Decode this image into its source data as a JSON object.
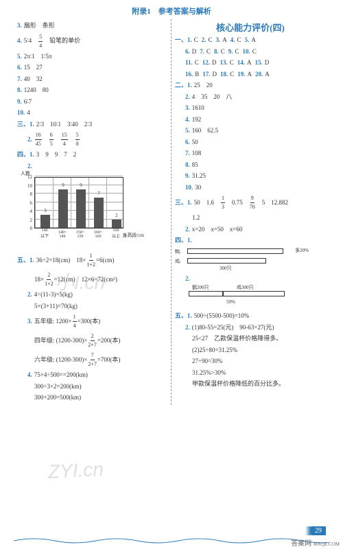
{
  "header": "附录1　参考答案与解析",
  "title_right": "核心能力评价(四)",
  "left": {
    "l3": "扇形　条形",
    "l4a": "5∶4",
    "l4b_num": "5",
    "l4b_den": "4",
    "l4c": "铅笔的单价",
    "l5": "2π∶1　1∶5π",
    "l6": "15　27",
    "l7": "40　32",
    "l8": "1240　80",
    "l9": "6∶7",
    "l10": "4",
    "s3_1": "2∶3　10∶1　3∶40　2∶3",
    "s3_2_f1n": "16",
    "s3_2_f1d": "45",
    "s3_2_f2n": "6",
    "s3_2_f2d": "5",
    "s3_2_f3n": "15",
    "s3_2_f3d": "4",
    "s3_2_f4n": "5",
    "s3_2_f4d": "8",
    "s4_1": "3　9　9　7　2",
    "chart": {
      "ylabel": "人数",
      "xlabel": "身高段/cm",
      "ymax": 12,
      "ystep": 2,
      "bars": [
        {
          "v": 3,
          "l": "3"
        },
        {
          "v": 9,
          "l": "9"
        },
        {
          "v": 9,
          "l": "9"
        },
        {
          "v": 7,
          "l": "7"
        },
        {
          "v": 2,
          "l": "2"
        }
      ],
      "xlabels": [
        "140\n以下",
        "140~\n149",
        "150~\n159",
        "160~\n169",
        "169\n以上"
      ],
      "bar_color": "#555",
      "grid_color": "#aaa"
    },
    "s5_1a": "36÷2=18(cm)　18×",
    "s5_1a_fn": "1",
    "s5_1a_fd": "1+2",
    "s5_1a2": "=6(cm)",
    "s5_1b": "18×",
    "s5_1b_fn": "2",
    "s5_1b_fd": "1+2",
    "s5_1b2": "=12(cm)　12×6=72(cm²)",
    "s5_2a": "4÷(11-3)=5(kg)",
    "s5_2b": "5×(3+11)=70(kg)",
    "s5_3a": "五年级: 1200×",
    "s5_3a_fn": "1",
    "s5_3a_fd": "4",
    "s5_3a2": "=300(本)",
    "s5_3b": "四年级: (1200-300)×",
    "s5_3b_fn": "2",
    "s5_3b_fd": "2+7",
    "s5_3b2": "=200(本)",
    "s5_3c": "六年级: (1200-300)×",
    "s5_3c_fn": "7",
    "s5_3c_fd": "2+7",
    "s5_3c2": "=700(本)",
    "s5_4a": "75×4÷500=",
    "s5_4a2": "=200(km)",
    "s5_4b": "300÷3×2=200(km)",
    "s5_4c": "300+200=500(km)"
  },
  "right": {
    "s1": [
      "1.C",
      "2.C",
      "3.A",
      "4.C",
      "5.A",
      "6.D",
      "7.C",
      "8.C",
      "9.C",
      "10.C",
      "11.C",
      "12.D",
      "13.C",
      "14.A",
      "15.D",
      "16.B",
      "17.D",
      "18.C",
      "19.A",
      "20.A"
    ],
    "s2_1": "25　20",
    "s2_2": "4　35　20　八",
    "s2_3": "1610",
    "s2_4": "192",
    "s2_5": "160　62.5",
    "s2_6": "50",
    "s2_7": "108",
    "s2_8": "85",
    "s2_9": "31.25",
    "s2_10": "30",
    "s3_1a": "50　1.6　",
    "s3_1_fn": "1",
    "s3_1_fd": "3",
    "s3_1b": "　0.75　",
    "s3_1_f2n": "9",
    "s3_1_f2d": "70",
    "s3_1c": "　5　12.882",
    "s3_1d": "1.2",
    "s3_2": "x=20　x=50　x=60",
    "s4_1_duck": "鸭:",
    "s4_1_chicken": "鸡:",
    "s4_1_more": "多20%",
    "s4_1_count": "300只",
    "s4_2_goose": "鹅200只",
    "s4_2_chick": "鸡300只",
    "s4_2_pct": "50%",
    "s5_1": "500÷(5500-500)=10%",
    "s5_2a": "(1)80-55=25(元)　90-63=27(元)",
    "s5_2b": "25<27　乙款保温杯价格降得多。",
    "s5_2c": "(2)25÷80=31.25%",
    "s5_2d": "27÷90=30%",
    "s5_2e": "31.25%>30%",
    "s5_2f": "甲款保温杯价格降低的百分比多。"
  },
  "pagenum": "29",
  "wm_text": "小I.cn",
  "wm_text2": "ZYI.cn",
  "wm_text3": "MXQE.COM",
  "brand": "答案网"
}
